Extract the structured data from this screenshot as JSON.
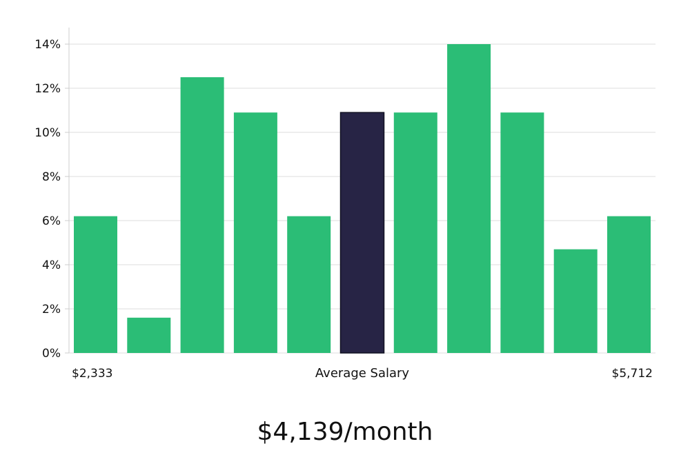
{
  "chart_data": {
    "type": "bar",
    "title": "",
    "xlabel": "Average Salary",
    "ylabel": "",
    "ylim": [
      0,
      14
    ],
    "yticks": [
      0,
      2,
      4,
      6,
      8,
      10,
      12,
      14
    ],
    "ytick_format": "%",
    "x_edge_labels": {
      "min": "$2,333",
      "max": "$5,712"
    },
    "values": [
      6.2,
      1.6,
      12.5,
      10.9,
      6.2,
      10.9,
      10.9,
      14.0,
      10.9,
      4.7,
      6.2
    ],
    "highlight_index": 5,
    "grid": true,
    "colors": {
      "bar": "#2bbd76",
      "highlight": "#272445",
      "grid": "#dddddd"
    }
  },
  "summary": {
    "salary_text": "$4,139/month"
  }
}
